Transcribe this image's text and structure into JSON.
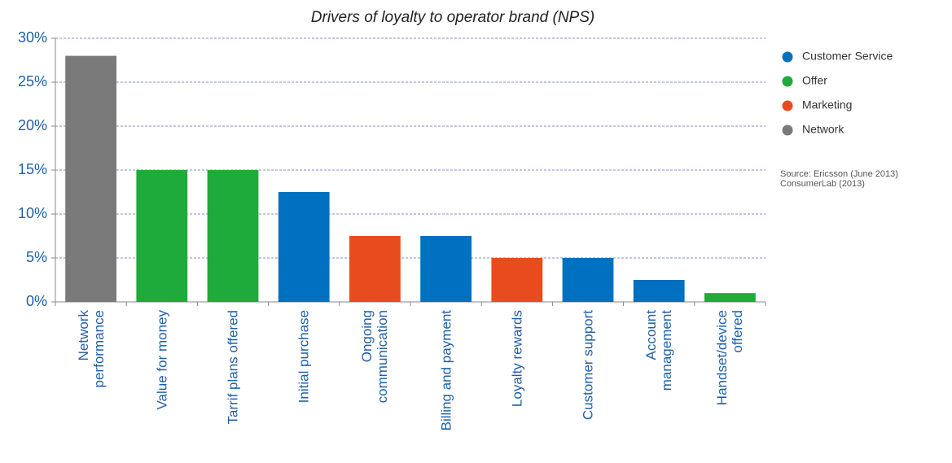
{
  "chart_data": {
    "type": "bar",
    "title": "Drivers of loyalty to operator brand (NPS)",
    "categories": [
      "Network\nperformance",
      "Value for money",
      "Tarrif plans offered",
      "Initial purchase",
      "Ongoing\ncommunication",
      "Billing and payment",
      "Loyalty rewards",
      "Customer support",
      "Account\nmanagement",
      "Handset/device\noffered"
    ],
    "series": [
      {
        "name": "Customer Service",
        "color": "#0070c0",
        "values": [
          null,
          null,
          null,
          12.5,
          null,
          7.5,
          null,
          5,
          2.5,
          null
        ]
      },
      {
        "name": "Offer",
        "color": "#1faa3c",
        "values": [
          null,
          15,
          15,
          null,
          null,
          null,
          null,
          null,
          null,
          1
        ]
      },
      {
        "name": "Marketing",
        "color": "#e84c1e",
        "values": [
          null,
          null,
          null,
          null,
          7.5,
          null,
          5,
          null,
          null,
          null
        ]
      },
      {
        "name": "Network",
        "color": "#7a7a7a",
        "values": [
          28,
          null,
          null,
          null,
          null,
          null,
          null,
          null,
          null,
          null
        ]
      }
    ],
    "ylim": [
      0,
      30
    ],
    "yticks": [
      {
        "value": 0,
        "label": "0%"
      },
      {
        "value": 5,
        "label": "5%"
      },
      {
        "value": 10,
        "label": "10%"
      },
      {
        "value": 15,
        "label": "15%"
      },
      {
        "value": 20,
        "label": "20%"
      },
      {
        "value": 25,
        "label": "25%"
      },
      {
        "value": 30,
        "label": "30%"
      }
    ],
    "grid": true,
    "legend": "right",
    "source": [
      "Source: Ericsson (June 2013)",
      "ConsumerLab (2013)"
    ]
  }
}
